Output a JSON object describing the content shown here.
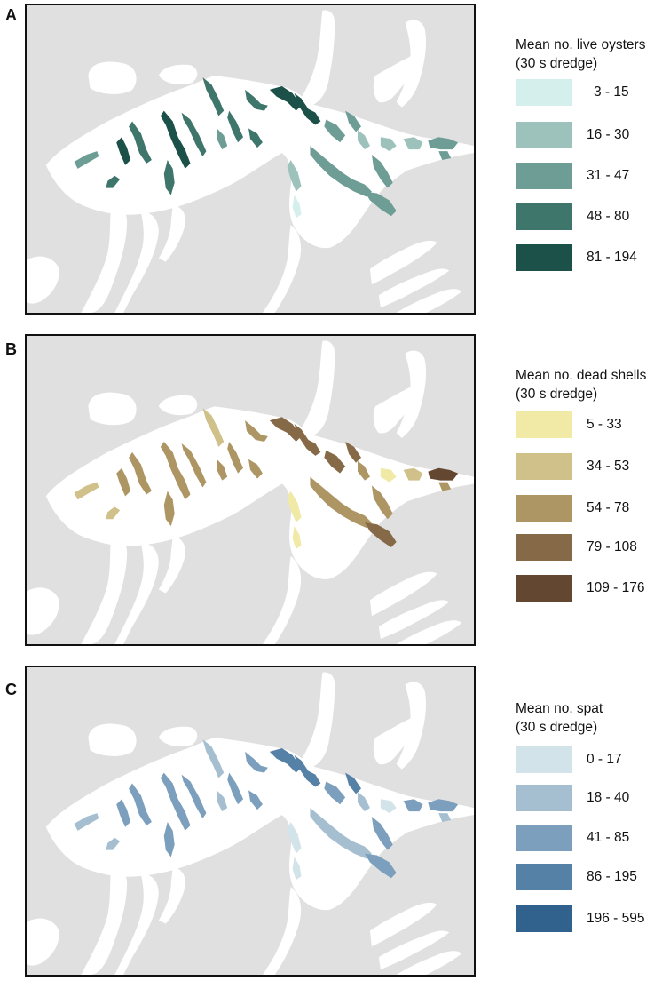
{
  "panels": [
    {
      "letter": "A",
      "legend_title_line1": "Mean no. live oysters",
      "legend_title_line2": "(30 s dredge)",
      "classes": [
        {
          "label": "3 - 15",
          "color": "#d5f0ec"
        },
        {
          "label": "16 - 30",
          "color": "#9cc2bb"
        },
        {
          "label": "31 - 47",
          "color": "#6e9d96"
        },
        {
          "label": "48 - 80",
          "color": "#3f766c"
        },
        {
          "label": "81 - 194",
          "color": "#1b5149"
        }
      ]
    },
    {
      "letter": "B",
      "legend_title_line1": "Mean no. dead shells",
      "legend_title_line2": "(30 s dredge)",
      "classes": [
        {
          "label": "5 - 33",
          "color": "#f1e9a6"
        },
        {
          "label": "34 - 53",
          "color": "#d0c08a"
        },
        {
          "label": "54 - 78",
          "color": "#ae9664"
        },
        {
          "label": "79 - 108",
          "color": "#866a47"
        },
        {
          "label": "109 - 176",
          "color": "#644731"
        }
      ]
    },
    {
      "letter": "C",
      "legend_title_line1": "Mean no. spat",
      "legend_title_line2": "(30 s dredge)",
      "classes": [
        {
          "label": "0 - 17",
          "color": "#d3e3ea"
        },
        {
          "label": "18 - 40",
          "color": "#a5bfd0"
        },
        {
          "label": "41 - 85",
          "color": "#7b9fbc"
        },
        {
          "label": "86 - 195",
          "color": "#5681a6"
        },
        {
          "label": "196 - 595",
          "color": "#30628d"
        }
      ]
    }
  ],
  "map_colors": {
    "land": "#e0e0e0",
    "water": "#ffffff"
  }
}
